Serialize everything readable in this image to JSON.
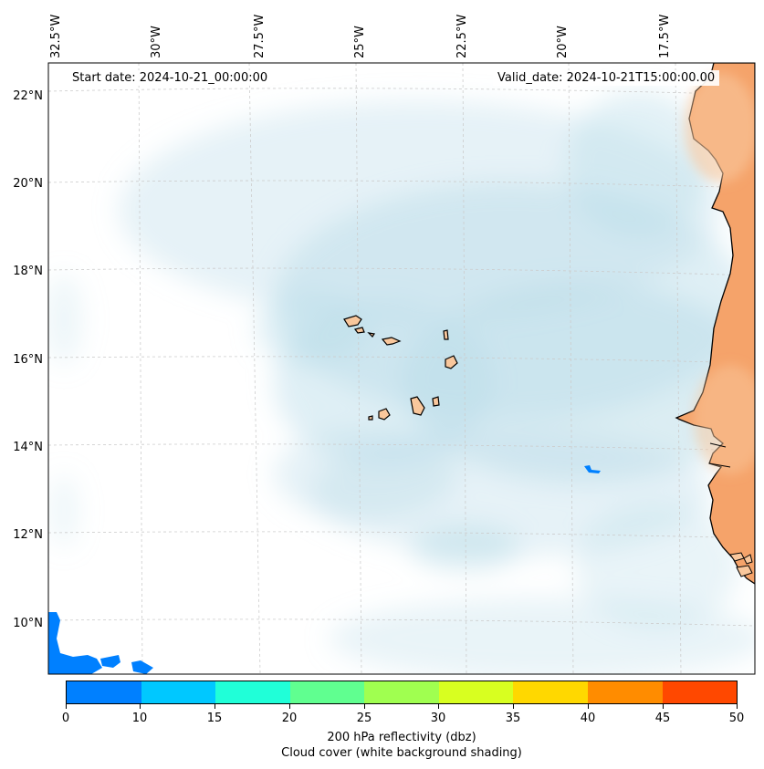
{
  "map": {
    "start_date": "Start date: 2024-10-21_00:00:00",
    "valid_date": "Valid_date: 2024-10-21T15:00:00.00",
    "lon_ticks": [
      "32.5°W",
      "30°W",
      "27.5°W",
      "25°W",
      "22.5°W",
      "20°W",
      "17.5°W"
    ],
    "lat_ticks": [
      "22°N",
      "20°N",
      "18°N",
      "16°N",
      "14°N",
      "12°N",
      "10°N"
    ],
    "region": "Cape Verde Islands and West African coast",
    "colors": {
      "land_islands": "#f9c79c",
      "land_coast": "#f5a36a",
      "cloud": "#b7dbe8",
      "reflectivity_low": "#0080ff",
      "coastline": "#000000",
      "grid": "#cccccc"
    }
  },
  "colorbar": {
    "ticks": [
      "0",
      "10",
      "15",
      "20",
      "25",
      "30",
      "35",
      "40",
      "45",
      "50"
    ],
    "colors": [
      "#0080ff",
      "#00c8ff",
      "#20ffd8",
      "#60ff90",
      "#a0ff50",
      "#d8ff20",
      "#ffd800",
      "#ff8c00",
      "#ff4800"
    ],
    "label_line1": "200 hPa reflectivity (dbz)",
    "label_line2": "Cloud cover (white background shading)"
  }
}
